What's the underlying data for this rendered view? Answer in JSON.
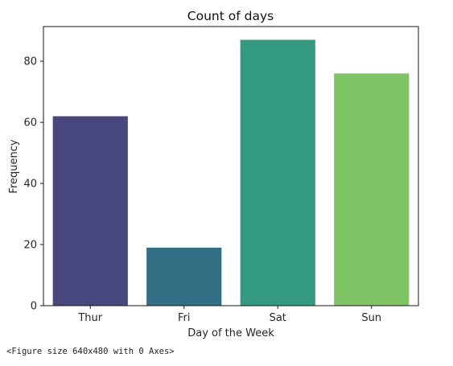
{
  "chart_data": {
    "type": "bar",
    "title": "Count of days",
    "xlabel": "Day of the Week",
    "ylabel": "Frequency",
    "categories": [
      "Thur",
      "Fri",
      "Sat",
      "Sun"
    ],
    "values": [
      62,
      19,
      87,
      76
    ],
    "colors": [
      "#48487f",
      "#336f84",
      "#339a7f",
      "#7ec464"
    ],
    "ylim": [
      0,
      91.35
    ],
    "yticks": [
      0,
      20,
      40,
      60,
      80
    ],
    "grid": false,
    "legend": "none"
  },
  "figure_note": "<Figure size 640x480 with 0 Axes>"
}
